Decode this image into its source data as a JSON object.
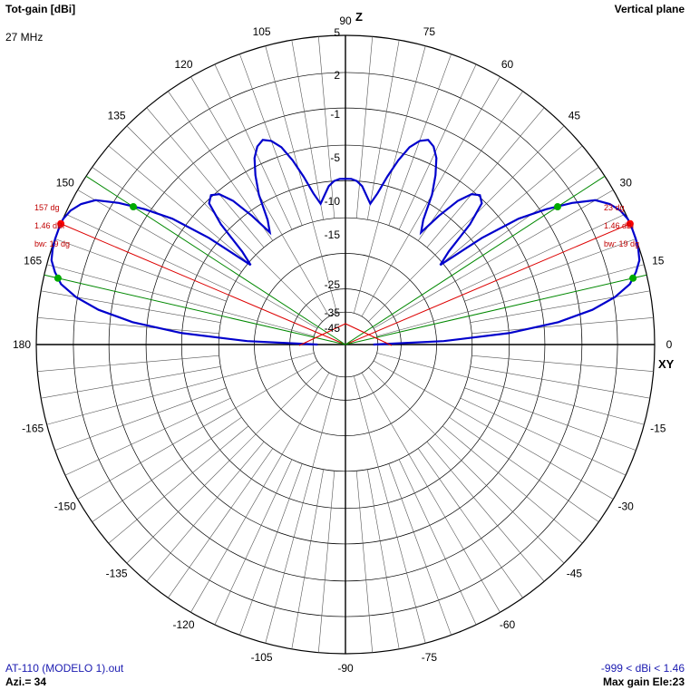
{
  "header": {
    "title": "Tot-gain [dBi]",
    "frequency": "27 MHz",
    "plane": "Vertical plane"
  },
  "footer": {
    "file": "AT-110 (MODELO 1).out",
    "azimuth": "Azi.= 34",
    "range": "-999 < dBi < 1.46",
    "max_gain": "Max gain Ele:23"
  },
  "axis_labels": {
    "top": "Z",
    "right": "XY"
  },
  "colors": {
    "pattern": "#0000cc",
    "max_line": "#dd0000",
    "beamwidth_line": "#008800",
    "grid": "#000000"
  },
  "markers": {
    "left": {
      "angle": "157 dg",
      "gain": "1.46 dBi",
      "bw": "bw: 19 dg"
    },
    "right": {
      "angle": "23 dg",
      "gain": "1.46 dBi",
      "bw": "bw: 19 dg"
    }
  },
  "chart_data": {
    "type": "polar",
    "angle_unit": "deg",
    "angle_ticks": [
      "0",
      "15",
      "30",
      "45",
      "60",
      "75",
      "90",
      "105",
      "120",
      "135",
      "150",
      "165",
      "180",
      "-165",
      "-150",
      "-135",
      "-120",
      "-105",
      "-90",
      "-75",
      "-60",
      "-45",
      "-30",
      "-15"
    ],
    "radial_labels": [
      "5",
      "2",
      "-1",
      "-5",
      "-10",
      "-15",
      "-25",
      "-35",
      "-45"
    ],
    "radial_range_dbi": [
      -999,
      1.46
    ],
    "series": [
      {
        "elevation_deg": [
          0,
          2,
          4,
          6,
          8,
          10,
          12,
          14,
          16,
          18,
          20,
          22,
          23,
          24,
          26,
          28,
          30,
          32,
          34,
          36,
          38,
          40,
          42,
          44,
          46,
          48,
          50,
          52,
          54,
          56,
          58,
          60,
          62,
          64,
          66,
          68,
          70,
          72,
          74,
          76,
          78,
          80,
          82,
          84,
          86,
          88,
          90
        ],
        "gain_dbi": [
          -40,
          -18,
          -9,
          -4,
          -1.5,
          -0.2,
          0.6,
          1.0,
          1.3,
          1.4,
          1.45,
          1.46,
          1.46,
          1.45,
          1.3,
          1.0,
          0.5,
          -0.5,
          -2,
          -4,
          -8,
          -14,
          -12,
          -8,
          -5.5,
          -5,
          -5.5,
          -7,
          -9.5,
          -12.5,
          -11,
          -8,
          -6,
          -4.5,
          -3.8,
          -3.5,
          -3.8,
          -4.5,
          -6,
          -8,
          -10,
          -11.5,
          -10.5,
          -9.5,
          -9,
          -8.8,
          -8.8
        ]
      }
    ],
    "max_gain": {
      "elevation_deg": 23,
      "gain_dbi": 1.46,
      "beamwidth_deg": 19
    }
  }
}
